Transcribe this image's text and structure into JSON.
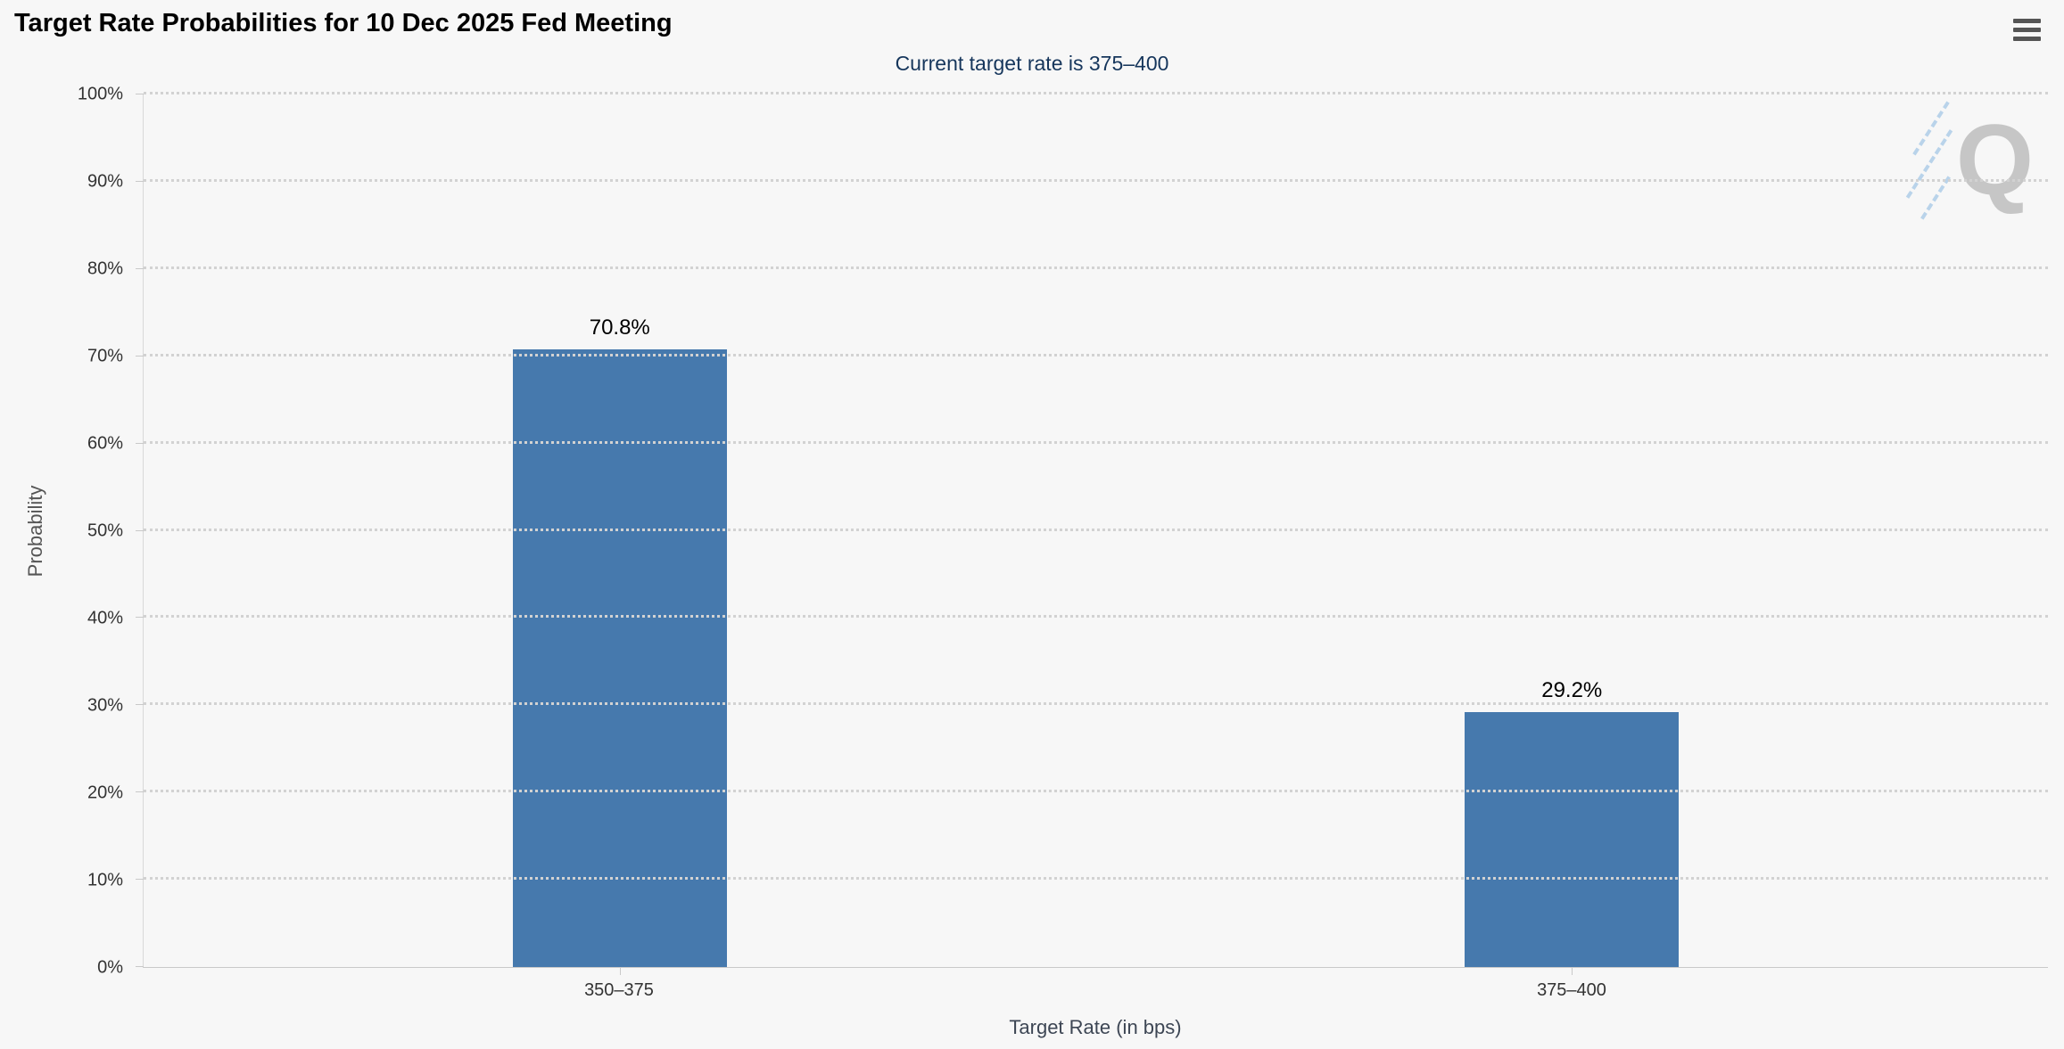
{
  "page": {
    "background": "#f7f7f7"
  },
  "header": {
    "menu_icon": "hamburger-icon"
  },
  "watermark": {
    "letter": "Q"
  },
  "chart_data": {
    "type": "bar",
    "title": "Target Rate Probabilities for 10 Dec 2025 Fed Meeting",
    "subtitle": "Current target rate is 375–400",
    "categories": [
      "350–375",
      "375–400"
    ],
    "values": [
      70.8,
      29.2
    ],
    "value_labels": [
      "70.8%",
      "29.2%"
    ],
    "xlabel": "Target Rate (in bps)",
    "ylabel": "Probability",
    "ylim": [
      0,
      100
    ],
    "ytick_step": 10,
    "ytick_suffix": "%",
    "grid": "horizontal-dotted",
    "legend": "none",
    "colors": {
      "bar": "#4679ad",
      "title": "#000000",
      "subtitle": "#16365c",
      "tick_labels": "#333333",
      "axis_titles": "#555555",
      "background": "#f7f7f7"
    }
  }
}
